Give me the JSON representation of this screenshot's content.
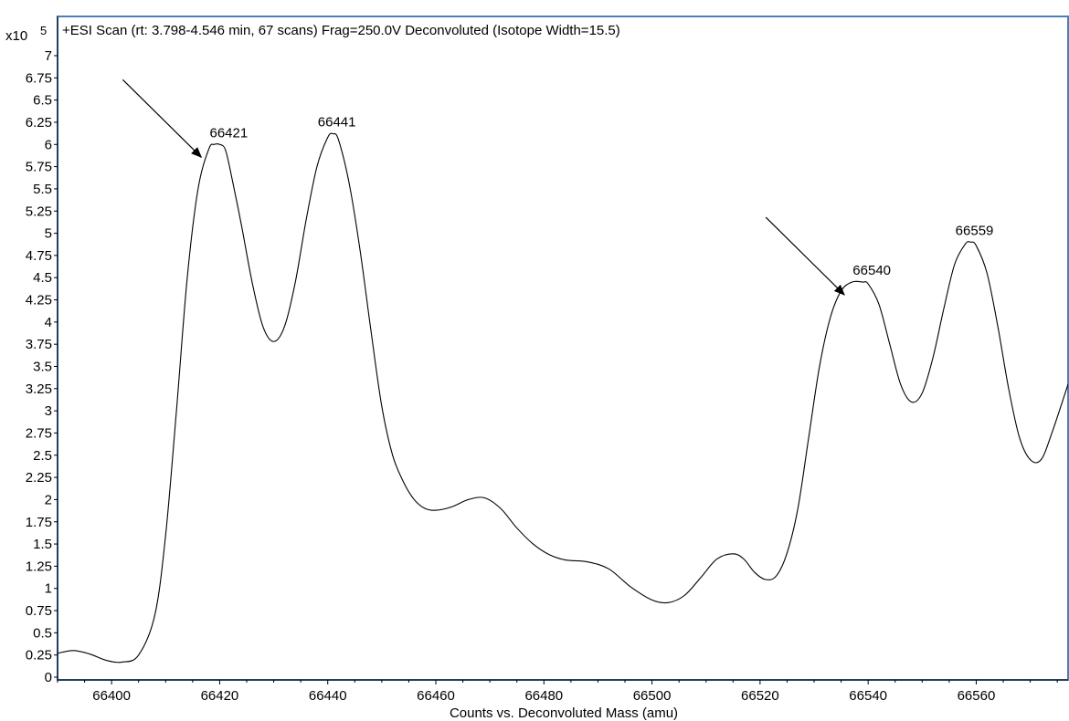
{
  "chart_data": {
    "type": "line",
    "title": "+ESI Scan (rt: 3.798-4.546 min, 67 scans) Frag=250.0V Deconvoluted (Isotope Width=15.5)",
    "y_multiplier": "x10",
    "y_multiplier_exponent": "5",
    "xlabel": "Counts vs. Deconvoluted Mass (amu)",
    "ylabel": "",
    "xlim": [
      66390,
      66577
    ],
    "ylim": [
      0,
      7.2
    ],
    "x_ticks": [
      66400,
      66420,
      66440,
      66460,
      66480,
      66500,
      66520,
      66540,
      66560
    ],
    "x_tick_labels": [
      "66400",
      "66420",
      "66440",
      "66460",
      "66480",
      "66500",
      "66520",
      "66540",
      "66560"
    ],
    "y_ticks": [
      0,
      0.25,
      0.5,
      0.75,
      1,
      1.25,
      1.5,
      1.75,
      2,
      2.25,
      2.5,
      2.75,
      3,
      3.25,
      3.5,
      3.75,
      4,
      4.25,
      4.5,
      4.75,
      5,
      5.25,
      5.5,
      5.75,
      6,
      6.25,
      6.5,
      6.75,
      7
    ],
    "y_tick_labels": [
      "0",
      "0.25",
      "0.5",
      "0.75",
      "1",
      "1.25",
      "1.5",
      "1.75",
      "2",
      "2.25",
      "2.5",
      "2.75",
      "3",
      "3.25",
      "3.5",
      "3.75",
      "4",
      "4.25",
      "4.5",
      "4.75",
      "5",
      "5.25",
      "5.5",
      "5.75",
      "6",
      "6.25",
      "6.5",
      "6.75",
      "7"
    ],
    "grid": false,
    "series": [
      {
        "x": [
          66390,
          66393,
          66396,
          66399,
          66402,
          66405,
          66408,
          66410,
          66412,
          66414,
          66416,
          66418,
          66419,
          66420,
          66421,
          66422,
          66424,
          66426,
          66428,
          66430,
          66432,
          66434,
          66436,
          66438,
          66440,
          66441,
          66442,
          66444,
          66446,
          66448,
          66450,
          66452,
          66454,
          66456,
          66458,
          66460,
          66463,
          66466,
          66469,
          66472,
          66475,
          66478,
          66481,
          66484,
          66488,
          66492,
          66496,
          66500,
          66503,
          66506,
          66509,
          66512,
          66515,
          66517,
          66519,
          66521,
          66523,
          66525,
          66527,
          66529,
          66531,
          66533,
          66535,
          66537,
          66539,
          66540,
          66542,
          66544,
          66546,
          66548,
          66550,
          66552,
          66554,
          66556,
          66558,
          66559,
          66560,
          66562,
          66564,
          66566,
          66568,
          66570,
          66572,
          66574,
          66577
        ],
        "values": [
          0.27,
          0.3,
          0.26,
          0.19,
          0.17,
          0.25,
          0.7,
          1.6,
          3.0,
          4.5,
          5.5,
          5.95,
          6.0,
          6.0,
          5.95,
          5.7,
          5.1,
          4.45,
          3.95,
          3.78,
          3.95,
          4.45,
          5.15,
          5.75,
          6.08,
          6.12,
          6.05,
          5.55,
          4.8,
          3.9,
          3.05,
          2.5,
          2.2,
          2.0,
          1.9,
          1.88,
          1.92,
          2.0,
          2.02,
          1.9,
          1.68,
          1.5,
          1.38,
          1.32,
          1.3,
          1.22,
          1.02,
          0.87,
          0.84,
          0.92,
          1.12,
          1.33,
          1.39,
          1.33,
          1.18,
          1.1,
          1.14,
          1.4,
          1.9,
          2.7,
          3.5,
          4.05,
          4.35,
          4.45,
          4.45,
          4.43,
          4.2,
          3.75,
          3.3,
          3.1,
          3.2,
          3.6,
          4.15,
          4.65,
          4.88,
          4.9,
          4.86,
          4.55,
          3.95,
          3.25,
          2.7,
          2.45,
          2.45,
          2.75,
          3.3
        ]
      }
    ],
    "annotations": [
      {
        "text": "66421",
        "x": 66421,
        "y": 6.0,
        "arrow": true
      },
      {
        "text": "66441",
        "x": 66441,
        "y": 6.12,
        "arrow": false
      },
      {
        "text": "66540",
        "x": 66540,
        "y": 4.45,
        "arrow": true
      },
      {
        "text": "66559",
        "x": 66559,
        "y": 4.9,
        "arrow": false
      }
    ],
    "colors": {
      "frame": "#4a7ebb",
      "line": "#000000",
      "text": "#000000"
    }
  }
}
